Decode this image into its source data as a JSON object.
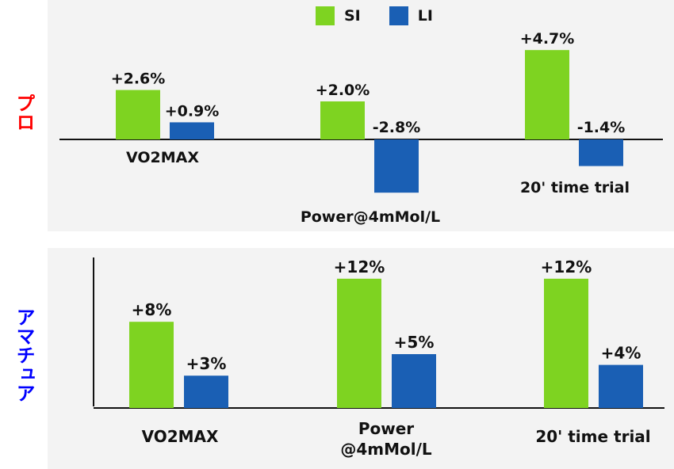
{
  "colors": {
    "si": "#7ed321",
    "li": "#1a5fb4",
    "pro_label": "#ff0000",
    "am_label": "#0000ff"
  },
  "legend": {
    "si_label": "SI",
    "li_label": "LI"
  },
  "panels": {
    "pro_label": "プロ",
    "amateur_label": "アマチュア"
  },
  "chart_data": [
    {
      "type": "bar",
      "group": "pro",
      "categories": [
        "VO2MAX",
        "Power@4mMol/L",
        "20' time trial"
      ],
      "series": [
        {
          "name": "SI",
          "values": [
            2.6,
            2.0,
            4.7
          ],
          "labels": [
            "+2.6%",
            "+2.0%",
            "+4.7%"
          ]
        },
        {
          "name": "LI",
          "values": [
            0.9,
            -2.8,
            -1.4
          ],
          "labels": [
            "+0.9%",
            "-2.8%",
            "-1.4%"
          ]
        }
      ],
      "ylim": [
        -3,
        5.5
      ]
    },
    {
      "type": "bar",
      "group": "amateur",
      "categories": [
        "VO2MAX",
        "Power\n@4mMol/L",
        "20' time trial"
      ],
      "series": [
        {
          "name": "SI",
          "values": [
            8,
            12,
            12
          ],
          "labels": [
            "+8%",
            "+12%",
            "+12%"
          ]
        },
        {
          "name": "LI",
          "values": [
            3,
            5,
            4
          ],
          "labels": [
            "+3%",
            "+5%",
            "+4%"
          ]
        }
      ],
      "ylim": [
        0,
        14
      ]
    }
  ]
}
